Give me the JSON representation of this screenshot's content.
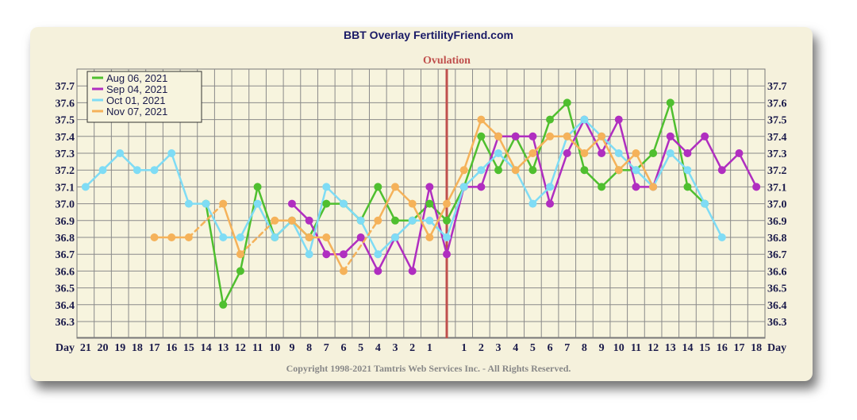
{
  "title": "BBT Overlay FertilityFriend.com",
  "copyright": "Copyright 1998-2021 Tamtris Web Services Inc. - All Rights Reserved.",
  "chart_data": {
    "type": "line",
    "ovulation_label": "Ovulation",
    "axis_label": "Day",
    "ylim": [
      36.2,
      37.8
    ],
    "y_ticks": [
      "37.7",
      "37.6",
      "37.5",
      "37.4",
      "37.3",
      "37.2",
      "37.1",
      "37.0",
      "36.9",
      "36.8",
      "36.7",
      "36.6",
      "36.5",
      "36.4",
      "36.3"
    ],
    "categories": [
      "21",
      "20",
      "19",
      "18",
      "17",
      "16",
      "15",
      "14",
      "13",
      "12",
      "11",
      "10",
      "9",
      "8",
      "7",
      "6",
      "5",
      "4",
      "3",
      "2",
      "1",
      "",
      "1",
      "2",
      "3",
      "4",
      "5",
      "6",
      "7",
      "8",
      "9",
      "10",
      "11",
      "12",
      "13",
      "14",
      "15",
      "16",
      "17",
      "18"
    ],
    "grid": true,
    "legend_position": "top-left",
    "series": [
      {
        "name": "Aug 06, 2021",
        "color": "#4fbf2f",
        "values": [
          null,
          null,
          null,
          null,
          null,
          null,
          null,
          37.0,
          36.4,
          36.6,
          37.1,
          36.8,
          36.9,
          36.8,
          37.0,
          37.0,
          36.9,
          37.1,
          36.9,
          36.9,
          37.0,
          36.9,
          37.1,
          37.4,
          37.2,
          37.4,
          37.2,
          37.5,
          37.6,
          37.2,
          37.1,
          37.2,
          37.2,
          37.3,
          37.6,
          37.1,
          37.0,
          null,
          null,
          null
        ]
      },
      {
        "name": "Sep 04, 2021",
        "color": "#b02ec0",
        "values": [
          null,
          null,
          null,
          null,
          null,
          null,
          null,
          null,
          null,
          null,
          null,
          null,
          37.0,
          36.9,
          36.7,
          36.7,
          36.8,
          36.6,
          36.8,
          36.6,
          37.1,
          36.7,
          37.1,
          37.1,
          37.4,
          37.4,
          37.4,
          37.0,
          37.3,
          37.5,
          37.3,
          37.5,
          37.1,
          37.1,
          37.4,
          37.3,
          37.4,
          37.2,
          37.3,
          37.1
        ]
      },
      {
        "name": "Oct 01, 2021",
        "color": "#7fdcf5",
        "values": [
          37.1,
          37.2,
          37.3,
          37.2,
          37.2,
          37.3,
          37.0,
          37.0,
          36.8,
          36.8,
          37.0,
          36.8,
          36.9,
          36.7,
          37.1,
          37.0,
          36.9,
          36.7,
          36.8,
          36.9,
          36.9,
          36.8,
          37.1,
          37.2,
          37.3,
          37.2,
          37.0,
          37.1,
          37.4,
          37.5,
          37.4,
          37.3,
          37.2,
          37.1,
          37.3,
          37.2,
          37.0,
          36.8,
          null,
          null
        ]
      },
      {
        "name": "Nov 07, 2021",
        "color": "#f5b25a",
        "values": [
          null,
          null,
          null,
          null,
          36.8,
          36.8,
          36.8,
          null,
          37.0,
          36.7,
          null,
          36.9,
          36.9,
          36.8,
          36.8,
          36.6,
          null,
          36.9,
          37.1,
          37.0,
          36.8,
          37.0,
          37.2,
          37.5,
          37.4,
          37.2,
          37.3,
          37.4,
          37.4,
          37.3,
          37.4,
          37.2,
          37.3,
          37.1,
          null,
          null,
          null,
          null,
          null,
          null
        ]
      }
    ]
  }
}
